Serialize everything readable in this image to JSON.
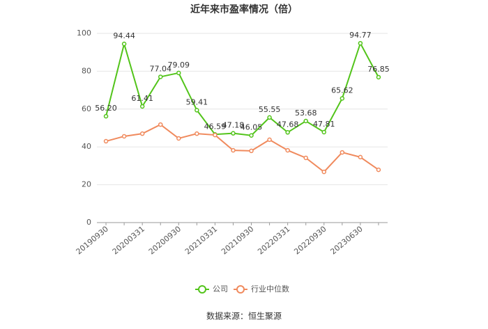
{
  "chart_data": {
    "type": "line",
    "title": "近年来市盈率情况（倍）",
    "categories": [
      "20190930",
      null,
      "20200331",
      null,
      "20200930",
      null,
      "20210331",
      null,
      "20210930",
      null,
      "20220331",
      null,
      "20220930",
      null,
      "20230630",
      null
    ],
    "series": [
      {
        "name": "公司",
        "color": "#52c41a",
        "values": [
          56.2,
          94.44,
          61.41,
          77.04,
          79.09,
          59.41,
          46.59,
          47.18,
          46.05,
          55.55,
          47.68,
          53.68,
          47.81,
          65.62,
          94.77,
          76.85
        ],
        "value_labels": [
          "56.20",
          "94.44",
          "61.41",
          "77.04",
          "79.09",
          "59.41",
          "46.59",
          "47.18",
          "46.05",
          "55.55",
          "47.68",
          "53.68",
          "47.81",
          "65.62",
          "94.77",
          "76.85"
        ]
      },
      {
        "name": "行业中位数",
        "color": "#f08a5d",
        "values": [
          43,
          45.6,
          47,
          51.8,
          44.5,
          47,
          46.3,
          38.2,
          37.9,
          43.8,
          38.2,
          34.2,
          26.8,
          37.1,
          34.6,
          27.9
        ]
      }
    ],
    "ylim": [
      0,
      100
    ],
    "yticks": [
      0,
      20,
      40,
      60,
      80,
      100
    ],
    "grid": true,
    "source": "数据来源：恒生聚源"
  }
}
